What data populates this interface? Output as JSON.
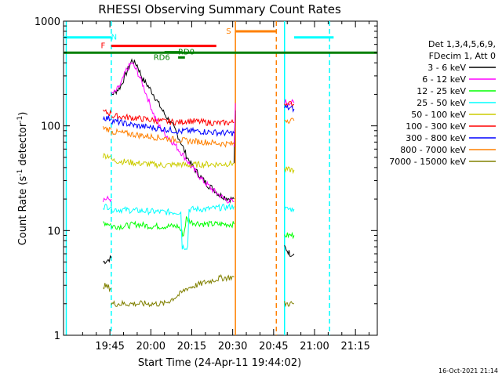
{
  "chart_data": {
    "type": "line",
    "title": "RHESSI Observing Summary Count Rates",
    "xlabel": "Start Time (24-Apr-11 19:44:02)",
    "ylabel": "Count Rate (s",
    "ylabel_sup1": "-1",
    "ylabel_mid": " detector",
    "ylabel_sup2": "-1",
    "ylabel_end": ")",
    "y_scale": "log",
    "ylim": [
      1,
      1000
    ],
    "xlim_minutes": [
      -17,
      98
    ],
    "x_tick_labels": [
      "19:45",
      "20:00",
      "20:15",
      "20:30",
      "20:45",
      "21:00",
      "21:15"
    ],
    "x_tick_minutes": [
      0,
      15,
      30,
      45,
      60,
      75,
      90
    ],
    "y_tick_labels": [
      "1",
      "10",
      "100",
      "1000"
    ],
    "y_tick_values": [
      1,
      10,
      100,
      1000
    ],
    "timestamp": "16-Oct-2021 21:14",
    "legend_title_1": "Det 1,3,4,5,6,9,",
    "legend_title_2": "FDecim 1, Att 0",
    "legend_position": "right",
    "series": [
      {
        "name": "3 - 6 keV",
        "color": "#000000",
        "segments": [
          [
            [
              -2.5,
              5
            ],
            [
              -1,
              5.2
            ],
            [
              0.5,
              5.5
            ]
          ],
          [
            [
              0.5,
              200
            ],
            [
              2,
              210
            ],
            [
              4,
              240
            ],
            [
              6,
              320
            ],
            [
              8,
              420
            ],
            [
              10,
              380
            ],
            [
              12,
              280
            ],
            [
              14,
              240
            ],
            [
              16,
              200
            ],
            [
              18,
              160
            ],
            [
              20,
              130
            ],
            [
              22,
              110
            ],
            [
              24,
              90
            ],
            [
              26,
              70
            ],
            [
              28,
              52
            ],
            [
              30,
              42
            ],
            [
              32,
              36
            ],
            [
              34,
              31
            ],
            [
              36,
              27
            ],
            [
              38,
              25
            ],
            [
              40,
              22
            ],
            [
              42,
              21
            ],
            [
              44,
              20
            ],
            [
              45.5,
              20
            ]
          ],
          [
            [
              45.5,
              45
            ],
            [
              46,
              140
            ]
          ],
          [
            [
              64,
              7
            ],
            [
              66,
              6
            ],
            [
              67.5,
              6
            ]
          ]
        ]
      },
      {
        "name": "6 - 12 keV",
        "color": "#ff00ff",
        "segments": [
          [
            [
              -2.5,
              20
            ],
            [
              0.5,
              20
            ]
          ],
          [
            [
              0.5,
              200
            ],
            [
              2,
              210
            ],
            [
              4,
              250
            ],
            [
              6,
              340
            ],
            [
              8,
              400
            ],
            [
              10,
              330
            ],
            [
              12,
              250
            ],
            [
              14,
              180
            ],
            [
              16,
              130
            ],
            [
              18,
              100
            ],
            [
              20,
              85
            ],
            [
              22,
              75
            ],
            [
              24,
              65
            ],
            [
              26,
              56
            ],
            [
              28,
              48
            ],
            [
              30,
              40
            ],
            [
              32,
              35
            ],
            [
              34,
              30
            ],
            [
              36,
              27
            ],
            [
              38,
              24
            ],
            [
              40,
              22
            ],
            [
              42,
              20
            ],
            [
              44,
              19
            ],
            [
              45.5,
              19
            ]
          ],
          [
            [
              45.5,
              60
            ],
            [
              46,
              165
            ]
          ],
          [
            [
              64,
              170
            ],
            [
              67.5,
              165
            ]
          ]
        ]
      },
      {
        "name": "12 - 25 keV",
        "color": "#00ff00",
        "segments": [
          [
            [
              -2.5,
              12
            ],
            [
              0.5,
              11.5
            ]
          ],
          [
            [
              0.5,
              11
            ],
            [
              5,
              11
            ],
            [
              10,
              11.5
            ],
            [
              15,
              11
            ],
            [
              20,
              11
            ],
            [
              25,
              11
            ],
            [
              26,
              10
            ],
            [
              27,
              9
            ],
            [
              28,
              13
            ],
            [
              30,
              12
            ],
            [
              35,
              11.5
            ],
            [
              40,
              11.5
            ],
            [
              45.5,
              11.5
            ]
          ],
          [
            [
              64,
              9
            ],
            [
              67.5,
              9
            ]
          ]
        ]
      },
      {
        "name": "25 - 50 keV",
        "color": "#00ffff",
        "segments": [
          [
            [
              -2.5,
              17
            ],
            [
              0.5,
              17
            ]
          ],
          [
            [
              0.5,
              16
            ],
            [
              10,
              15.5
            ],
            [
              20,
              15
            ],
            [
              26,
              15
            ],
            [
              26.5,
              7
            ],
            [
              28.5,
              7
            ],
            [
              29,
              16
            ],
            [
              35,
              16
            ],
            [
              40,
              16.5
            ],
            [
              45.5,
              17
            ]
          ],
          [
            [
              64,
              16
            ],
            [
              67.5,
              16
            ]
          ]
        ]
      },
      {
        "name": "50 - 100 keV",
        "color": "#cccc00",
        "segments": [
          [
            [
              -2.5,
              52
            ],
            [
              0.5,
              52
            ]
          ],
          [
            [
              0.5,
              47
            ],
            [
              10,
              44
            ],
            [
              20,
              42
            ],
            [
              26,
              43
            ],
            [
              28,
              42
            ],
            [
              35,
              43
            ],
            [
              40,
              43
            ],
            [
              45.5,
              44
            ]
          ],
          [
            [
              64,
              38
            ],
            [
              67.5,
              38
            ]
          ]
        ]
      },
      {
        "name": "100 - 300 keV",
        "color": "#ff0000",
        "segments": [
          [
            [
              -2.5,
              135
            ],
            [
              0.5,
              132
            ]
          ],
          [
            [
              0.5,
              125
            ],
            [
              10,
              118
            ],
            [
              20,
              110
            ],
            [
              26,
              108
            ],
            [
              28,
              112
            ],
            [
              35,
              108
            ],
            [
              40,
              106
            ],
            [
              45.5,
              108
            ]
          ],
          [
            [
              64,
              165
            ],
            [
              67.5,
              160
            ]
          ]
        ]
      },
      {
        "name": "300 - 800 keV",
        "color": "#0000ff",
        "segments": [
          [
            [
              -2.5,
              120
            ],
            [
              0.5,
              117
            ]
          ],
          [
            [
              0.5,
              112
            ],
            [
              10,
              100
            ],
            [
              20,
              93
            ],
            [
              26,
              88
            ],
            [
              28,
              90
            ],
            [
              35,
              88
            ],
            [
              40,
              86
            ],
            [
              45.5,
              85
            ]
          ],
          [
            [
              64,
              150
            ],
            [
              67.5,
              145
            ]
          ]
        ]
      },
      {
        "name": "800 - 7000 keV",
        "color": "#ff8000",
        "segments": [
          [
            [
              -2.5,
              95
            ],
            [
              0.5,
              92
            ]
          ],
          [
            [
              0.5,
              88
            ],
            [
              10,
              82
            ],
            [
              20,
              76
            ],
            [
              26,
              73
            ],
            [
              28,
              72
            ],
            [
              35,
              70
            ],
            [
              40,
              68
            ],
            [
              45.5,
              67
            ]
          ],
          [
            [
              64,
              115
            ],
            [
              67.5,
              112
            ]
          ]
        ]
      },
      {
        "name": "7000 - 15000 keV",
        "color": "#808000",
        "segments": [
          [
            [
              -2.5,
              3
            ],
            [
              0.5,
              2.8
            ]
          ],
          [
            [
              0.5,
              2
            ],
            [
              10,
              2
            ],
            [
              20,
              2
            ],
            [
              26,
              2.5
            ],
            [
              28,
              2.8
            ],
            [
              35,
              3.2
            ],
            [
              40,
              3.5
            ],
            [
              45.5,
              3.6
            ]
          ],
          [
            [
              64,
              2
            ],
            [
              67.5,
              2
            ]
          ]
        ]
      }
    ],
    "annotations": [
      {
        "label": "N",
        "color": "#00ffff",
        "type": "bar",
        "x0": -17,
        "x1": 0.5,
        "level": 700,
        "label_x": 1.5
      },
      {
        "label": "N",
        "color": "#00ffff",
        "type": "bar",
        "x0": 67.5,
        "x1": 82,
        "level": 700,
        "label_x": null
      },
      {
        "label": "F",
        "color": "#ff0000",
        "type": "bar",
        "x0": 0.5,
        "x1": 39,
        "level": 580,
        "label_x": -2.5
      },
      {
        "label": "S",
        "color": "#ff8000",
        "type": "bar",
        "x0": 46,
        "x1": 61,
        "level": 800,
        "label_x": 43.5
      },
      {
        "label": "",
        "color": "#008000",
        "type": "bar",
        "x0": -17,
        "x1": 98,
        "level": 500,
        "label_x": null
      },
      {
        "label": "RD0",
        "color": "#008000",
        "type": "bar",
        "x0": 20,
        "x1": 26,
        "level": 505,
        "label_x": 28
      },
      {
        "label": "RD6",
        "color": "#008000",
        "type": "bar",
        "x0": 25,
        "x1": 27.5,
        "level": 450,
        "label_x": 19
      }
    ],
    "vlines": [
      {
        "x": -16,
        "color": "#00ffff",
        "dash": false
      },
      {
        "x": 0.5,
        "color": "#00ffff",
        "dash": true
      },
      {
        "x": 46,
        "color": "#ff8000",
        "dash": false
      },
      {
        "x": 61,
        "color": "#ff8000",
        "dash": true
      },
      {
        "x": 64,
        "color": "#00ffff",
        "dash": false
      },
      {
        "x": 80.5,
        "color": "#00ffff",
        "dash": true
      }
    ],
    "grid": false
  }
}
